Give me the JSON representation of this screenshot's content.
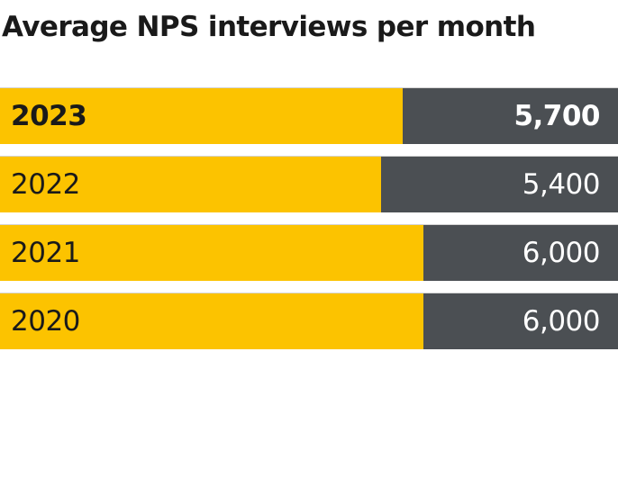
{
  "title": "Average NPS interviews per month",
  "chart_data": {
    "type": "bar",
    "orientation": "horizontal",
    "title": "Average NPS interviews per month",
    "categories": [
      "2023",
      "2022",
      "2021",
      "2020"
    ],
    "values": [
      5700,
      5400,
      6000,
      6000
    ],
    "value_labels": [
      "5,700",
      "5,400",
      "6,000",
      "6,000"
    ],
    "highlighted_category": "2023",
    "xlim": [
      0,
      8750
    ],
    "colors": {
      "bar": "#fcc300",
      "track": "#4b4f53",
      "label_text": "#1a1a1a",
      "value_text": "#ffffff"
    },
    "grid": false,
    "legend": "none"
  }
}
